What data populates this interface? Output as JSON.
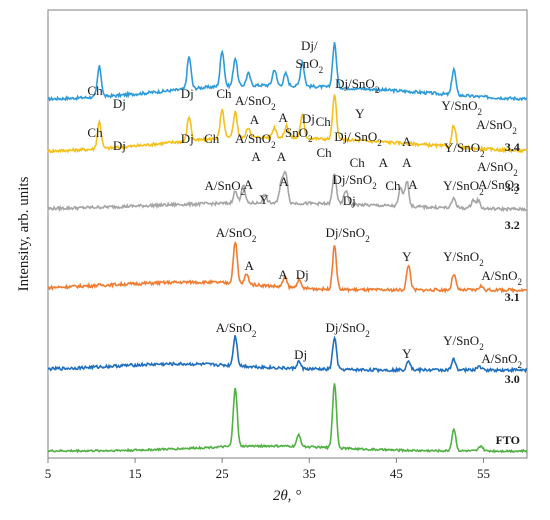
{
  "chart_data": {
    "type": "line",
    "xlabel": "2θ, °",
    "ylabel": "Intensity, arb. units",
    "xlim": [
      5,
      60
    ],
    "x_ticks": [
      "5",
      "15",
      "25",
      "35",
      "45",
      "55"
    ],
    "grid": false,
    "series": [
      {
        "name": "3.4",
        "color": "#2e9bd9",
        "peaks": [
          [
            10.9,
            30
          ],
          [
            21.2,
            32
          ],
          [
            25.0,
            36
          ],
          [
            26.5,
            28
          ],
          [
            28.0,
            12
          ],
          [
            31.0,
            16
          ],
          [
            32.3,
            12
          ],
          [
            34.2,
            24
          ],
          [
            37.9,
            44
          ],
          [
            51.6,
            26
          ]
        ],
        "labels": [
          {
            "text": "Ch",
            "x": 10.4,
            "h": 5
          },
          {
            "text": "Dj",
            "x": 13.2,
            "h": -8
          },
          {
            "text": "Dj",
            "x": 21.0,
            "h": 2
          },
          {
            "text": "Ch",
            "x": 25.2,
            "h": 2
          },
          {
            "text": "A/SnO",
            "sub": "2",
            "x": 28.8,
            "h": -5
          },
          {
            "text": "A",
            "x": 28.7,
            "h": -24
          },
          {
            "text": "A",
            "x": 32.0,
            "h": -22
          },
          {
            "text": "Dj/",
            "x": 35.0,
            "h": 50
          },
          {
            "text": "SnO",
            "sub": "2",
            "x": 35.0,
            "h": 32
          },
          {
            "text": "Dj/SnO",
            "sub": "2",
            "x": 40.5,
            "h": 12
          },
          {
            "text": "Ch",
            "x": 36.6,
            "h": -26
          },
          {
            "text": "Y",
            "x": 40.8,
            "h": -18
          },
          {
            "text": "A",
            "x": 46.2,
            "h": -46
          },
          {
            "text": "Y/SnO",
            "sub": "2",
            "x": 52.5,
            "h": -10
          },
          {
            "text": "A/SnO",
            "sub": "2",
            "x": 56.5,
            "h": -29
          },
          {
            "text": "3.4",
            "x": 58.3,
            "h": -51,
            "bold": true
          }
        ]
      },
      {
        "name": "3.3",
        "color": "#f4c01d",
        "peaks": [
          [
            10.9,
            27
          ],
          [
            21.2,
            24
          ],
          [
            25.0,
            28
          ],
          [
            26.5,
            26
          ],
          [
            28.0,
            10
          ],
          [
            31.0,
            10
          ],
          [
            32.4,
            12
          ],
          [
            34.2,
            22
          ],
          [
            37.9,
            44
          ],
          [
            51.6,
            22
          ]
        ],
        "labels": [
          {
            "text": "Ch",
            "x": 10.4,
            "h": 15
          },
          {
            "text": "Dj",
            "x": 13.2,
            "h": 2
          },
          {
            "text": "Dj",
            "x": 21.0,
            "h": 9
          },
          {
            "text": "Ch",
            "x": 23.8,
            "h": 9
          },
          {
            "text": "A/SnO",
            "sub": "2",
            "x": 28.8,
            "h": 9
          },
          {
            "text": "Dj",
            "x": 34.9,
            "h": 29
          },
          {
            "text": "SnO",
            "sub": "2",
            "x": 33.8,
            "h": 15
          },
          {
            "text": "Dj/ SnO",
            "sub": "2",
            "x": 40.6,
            "h": 11
          },
          {
            "text": "A",
            "x": 28.9,
            "h": -9
          },
          {
            "text": "A",
            "x": 31.8,
            "h": -9
          },
          {
            "text": "Ch",
            "x": 36.7,
            "h": -5
          },
          {
            "text": "Ch",
            "x": 40.5,
            "h": -15
          },
          {
            "text": "A",
            "x": 43.5,
            "h": -15
          },
          {
            "text": "A",
            "x": 46.2,
            "h": -15
          },
          {
            "text": "Y/SnO",
            "sub": "2",
            "x": 52.8,
            "h": 0
          },
          {
            "text": "A/SnO",
            "sub": "2",
            "x": 56.6,
            "h": -19
          },
          {
            "text": "3.3",
            "x": 58.3,
            "h": -39,
            "bold": true
          }
        ]
      },
      {
        "name": "3.2",
        "color": "#a5a5a5",
        "peaks": [
          [
            26.5,
            12
          ],
          [
            27.4,
            18
          ],
          [
            29.9,
            8
          ],
          [
            31.8,
            22
          ],
          [
            32.3,
            30
          ],
          [
            37.9,
            30
          ],
          [
            39.2,
            14
          ],
          [
            45.5,
            18
          ],
          [
            46.2,
            26
          ],
          [
            51.6,
            10
          ],
          [
            53.8,
            8
          ],
          [
            54.4,
            8
          ]
        ],
        "labels": [
          {
            "text": "A/SnO",
            "sub": "2",
            "x": 25.3,
            "h": 20
          },
          {
            "text": "Y",
            "x": 29.8,
            "h": 6
          },
          {
            "text": "A",
            "x": 28.0,
            "h": 21
          },
          {
            "text": "A",
            "x": 32.1,
            "h": 24
          },
          {
            "text": "Dj/SnO",
            "sub": "2",
            "x": 40.2,
            "h": 26
          },
          {
            "text": "Dj",
            "x": 39.6,
            "h": 5
          },
          {
            "text": "Ch",
            "x": 44.6,
            "h": 20
          },
          {
            "text": "A",
            "x": 46.9,
            "h": 21
          },
          {
            "text": "Y/SnO",
            "sub": "2",
            "x": 52.7,
            "h": 20
          },
          {
            "text": "A/SnO",
            "sub": "2",
            "x": 56.7,
            "h": 21
          },
          {
            "text": "3.2",
            "x": 58.3,
            "h": -19,
            "bold": true
          }
        ]
      },
      {
        "name": "3.1",
        "color": "#ef7d31",
        "peaks": [
          [
            26.5,
            42
          ],
          [
            27.8,
            10
          ],
          [
            32.2,
            10
          ],
          [
            33.8,
            8
          ],
          [
            37.9,
            44
          ],
          [
            46.4,
            25
          ],
          [
            51.6,
            16
          ],
          [
            54.7,
            4
          ]
        ],
        "labels": [
          {
            "text": "A/SnO",
            "sub": "2",
            "x": 26.6,
            "h": 53
          },
          {
            "text": "A",
            "x": 28.1,
            "h": 20
          },
          {
            "text": "A",
            "x": 32.0,
            "h": 11
          },
          {
            "text": "Dj",
            "x": 34.2,
            "h": 11
          },
          {
            "text": "Dj/SnO",
            "sub": "2",
            "x": 39.4,
            "h": 53
          },
          {
            "text": "Y",
            "x": 46.2,
            "h": 29
          },
          {
            "text": "Y/SnO",
            "sub": "2",
            "x": 52.7,
            "h": 29
          },
          {
            "text": "A/SnO",
            "sub": "2",
            "x": 57.1,
            "h": 10
          },
          {
            "text": "3.1",
            "x": 58.3,
            "h": -11,
            "bold": true
          }
        ]
      },
      {
        "name": "3.0",
        "color": "#1f6fbf",
        "peaks": [
          [
            26.5,
            30
          ],
          [
            33.8,
            7
          ],
          [
            37.9,
            32
          ],
          [
            46.4,
            10
          ],
          [
            51.6,
            11
          ],
          [
            54.5,
            4
          ]
        ],
        "labels": [
          {
            "text": "A/SnO",
            "sub": "2",
            "x": 26.6,
            "h": 38
          },
          {
            "text": "Dj",
            "x": 34.0,
            "h": 11
          },
          {
            "text": "Dj/SnO",
            "sub": "2",
            "x": 39.4,
            "h": 38
          },
          {
            "text": "Y",
            "x": 46.2,
            "h": 12
          },
          {
            "text": "Y/SnO",
            "sub": "2",
            "x": 52.7,
            "h": 25
          },
          {
            "text": "A/SnO",
            "sub": "2",
            "x": 57.1,
            "h": 7
          },
          {
            "text": "3.0",
            "x": 58.3,
            "h": -13,
            "bold": true
          }
        ]
      },
      {
        "name": "FTO",
        "color": "#52b044",
        "peaks": [
          [
            26.5,
            59
          ],
          [
            33.8,
            12
          ],
          [
            37.9,
            65
          ],
          [
            51.6,
            22
          ],
          [
            54.7,
            5
          ]
        ],
        "labels": [
          {
            "text": "FTO",
            "x": 57.8,
            "h": 7,
            "bold": true
          }
        ]
      }
    ]
  }
}
